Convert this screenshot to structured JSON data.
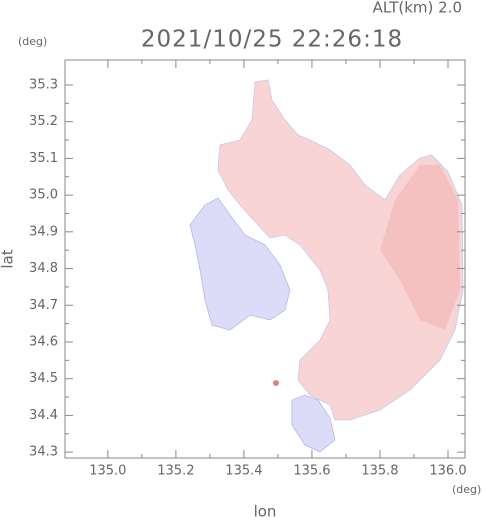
{
  "header": {
    "altitude": "ALT(km)  2.0",
    "timestamp": "2021/10/25 22:26:18",
    "y_unit": "(deg)"
  },
  "chart_data": {
    "type": "map",
    "xlabel": "lon",
    "ylabel": "lat",
    "x_unit": "(deg)",
    "xlim": [
      134.874,
      136.05
    ],
    "ylim": [
      34.284,
      35.368
    ],
    "xticks": [
      {
        "value": 135.0,
        "label": "135.0"
      },
      135.2,
      135.4,
      135.6,
      135.8,
      {
        "value": 136.0,
        "label": "136.0"
      }
    ],
    "yticks": [
      34.3,
      34.4,
      34.5,
      34.6,
      34.7,
      34.8,
      34.9,
      {
        "value": 35.0,
        "label": "35.0"
      },
      35.1,
      35.2,
      35.3
    ]
  }
}
